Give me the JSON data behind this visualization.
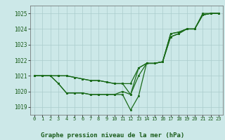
{
  "title": "Graphe pression niveau de la mer (hPa)",
  "bg_color": "#cce8e8",
  "grid_color": "#aacccc",
  "line_color": "#1a6b1a",
  "marker_color": "#1a6b1a",
  "xlim": [
    -0.5,
    23.5
  ],
  "ylim": [
    1018.5,
    1025.5
  ],
  "yticks": [
    1019,
    1020,
    1021,
    1022,
    1023,
    1024,
    1025
  ],
  "xticks": [
    0,
    1,
    2,
    3,
    4,
    5,
    6,
    7,
    8,
    9,
    10,
    11,
    12,
    13,
    14,
    15,
    16,
    17,
    18,
    19,
    20,
    21,
    22,
    23
  ],
  "series": [
    [
      1021.0,
      1021.0,
      1021.0,
      1021.0,
      1021.0,
      1020.9,
      1020.8,
      1020.7,
      1020.7,
      1020.6,
      1020.5,
      1020.5,
      1020.5,
      1021.5,
      1021.8,
      1021.8,
      1021.9,
      1023.7,
      1023.8,
      1024.0,
      1024.0,
      1024.9,
      1025.0,
      1025.0
    ],
    [
      1021.0,
      1021.0,
      1021.0,
      1021.0,
      1021.0,
      1020.9,
      1020.8,
      1020.7,
      1020.7,
      1020.6,
      1020.5,
      1020.5,
      1019.8,
      1021.0,
      1021.8,
      1021.8,
      1021.9,
      1023.7,
      1023.8,
      1024.0,
      1024.0,
      1025.0,
      1025.0,
      1025.0
    ],
    [
      1021.0,
      1021.0,
      1021.0,
      1020.5,
      1019.9,
      1019.9,
      1019.9,
      1019.8,
      1019.8,
      1019.8,
      1019.8,
      1020.0,
      1019.8,
      1021.5,
      1021.8,
      1021.8,
      1021.9,
      1023.5,
      1023.7,
      1024.0,
      1024.0,
      1024.9,
      1025.0,
      1025.0
    ],
    [
      1021.0,
      1021.0,
      1021.0,
      1020.5,
      1019.9,
      1019.9,
      1019.9,
      1019.8,
      1019.8,
      1019.8,
      1019.8,
      1019.8,
      1018.8,
      1019.7,
      1021.8,
      1021.8,
      1021.9,
      1023.5,
      1023.7,
      1024.0,
      1024.0,
      1024.9,
      1025.0,
      1025.0
    ]
  ]
}
